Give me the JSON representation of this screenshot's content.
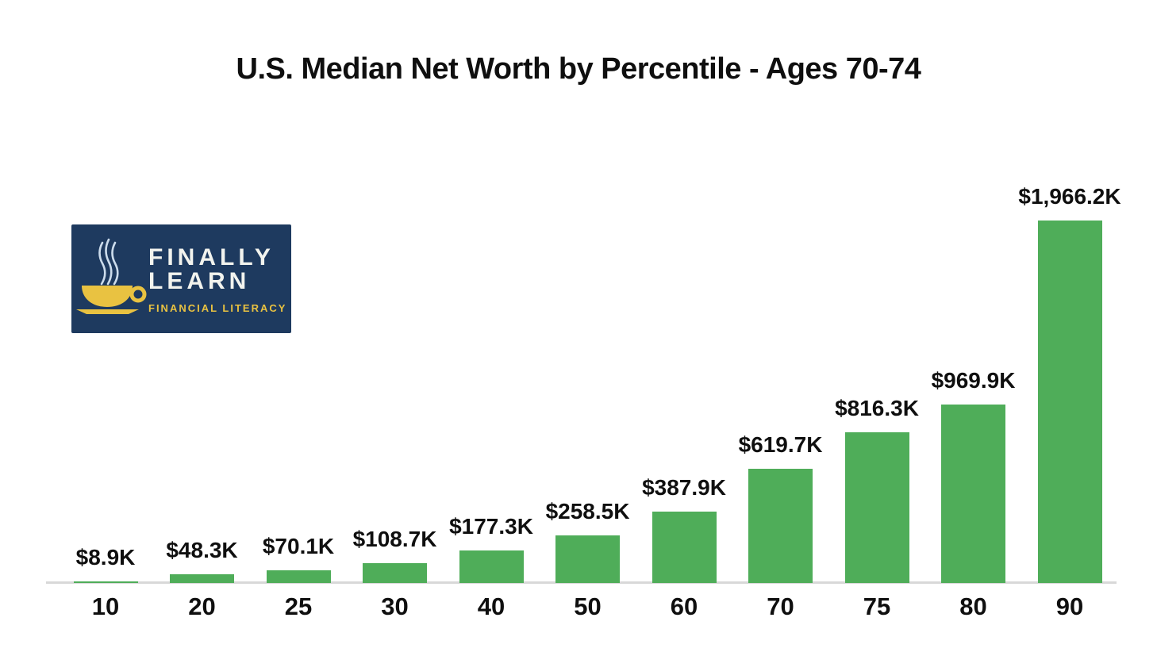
{
  "chart_data": {
    "type": "bar",
    "title": "U.S. Median Net Worth by Percentile - Ages 70-74",
    "xlabel": "",
    "ylabel": "",
    "unit": "thousand USD",
    "categories": [
      "10",
      "20",
      "25",
      "30",
      "40",
      "50",
      "60",
      "70",
      "75",
      "80",
      "90"
    ],
    "values": [
      8.9,
      48.3,
      70.1,
      108.7,
      177.3,
      258.5,
      387.9,
      619.7,
      816.3,
      969.9,
      1966.2
    ],
    "value_labels": [
      "$8.9K",
      "$48.3K",
      "$70.1K",
      "$108.7K",
      "$177.3K",
      "$258.5K",
      "$387.9K",
      "$619.7K",
      "$816.3K",
      "$969.9K",
      "$1,966.2K"
    ],
    "ylim": [
      0,
      2000
    ],
    "grid": false,
    "legend": null,
    "bar_color": "#4fad59",
    "axis_line_color": "#d8d8d8",
    "label_color": "#0f0f0f"
  },
  "logo": {
    "line1": "FINALLY",
    "line2": "LEARN",
    "tagline": "FINANCIAL LITERACY",
    "bg_color": "#1e3a5f",
    "text_color": "#f2f3ee",
    "accent_color": "#e9c241",
    "steam_color": "#ccdcec",
    "icon": "coffee-cup-icon"
  }
}
